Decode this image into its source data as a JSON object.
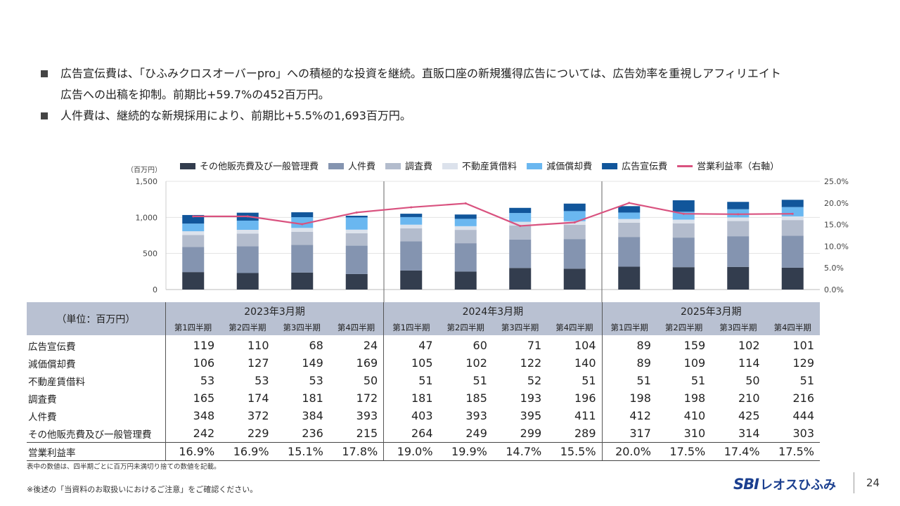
{
  "bullets": [
    {
      "line1": "広告宣伝費は、「ひふみクロスオーバーpro」への積極的な投資を継続。直販口座の新規獲得広告については、広告効率を重視しアフィリエイト",
      "line2": "広告への出稿を抑制。前期比+59.7%の452百万円。"
    },
    {
      "line1": "人件費は、継続的な新規採用により、前期比+5.5%の1,693百万円。",
      "line2": ""
    }
  ],
  "chart_data": {
    "type": "bar",
    "stacked": true,
    "unit_label": "（百万円）",
    "y_ticks": [
      "1,500",
      "1,000",
      "500",
      "0"
    ],
    "y2_ticks": [
      "25.0%",
      "20.0%",
      "15.0%",
      "10.0%",
      "5.0%",
      "0.0%"
    ],
    "ylim": [
      0,
      1500
    ],
    "y2lim": [
      0,
      25
    ],
    "legend_placement": "top",
    "categories": [
      "2023年3月期 第1四半期",
      "2023年3月期 第2四半期",
      "2023年3月期 第3四半期",
      "2023年3月期 第4四半期",
      "2024年3月期 第1四半期",
      "2024年3月期 第2四半期",
      "2024年3月期 第3四半期",
      "2024年3月期 第4四半期",
      "2025年3月期 第1四半期",
      "2025年3月期 第2四半期",
      "2025年3月期 第3四半期",
      "2025年3月期 第4四半期"
    ],
    "series": [
      {
        "name": "その他販売費及び一般管理費",
        "color": "#333d4e",
        "values": [
          242,
          229,
          236,
          215,
          264,
          249,
          299,
          289,
          317,
          310,
          314,
          303
        ]
      },
      {
        "name": "人件費",
        "color": "#8494b0",
        "values": [
          348,
          372,
          384,
          393,
          403,
          393,
          395,
          411,
          412,
          410,
          425,
          444
        ]
      },
      {
        "name": "調査費",
        "color": "#b3bccd",
        "values": [
          165,
          174,
          181,
          172,
          181,
          185,
          193,
          196,
          198,
          198,
          210,
          216
        ]
      },
      {
        "name": "不動産賃借料",
        "color": "#dce2ec",
        "values": [
          53,
          53,
          53,
          50,
          51,
          51,
          52,
          51,
          51,
          51,
          50,
          51
        ]
      },
      {
        "name": "減価償却費",
        "color": "#6ab7f0",
        "values": [
          106,
          127,
          149,
          169,
          105,
          102,
          122,
          140,
          89,
          109,
          114,
          129
        ]
      },
      {
        "name": "広告宣伝費",
        "color": "#11569b",
        "values": [
          119,
          110,
          68,
          24,
          47,
          60,
          71,
          104,
          89,
          159,
          102,
          101
        ]
      }
    ],
    "line_series": {
      "name": "営業利益率（右軸）",
      "color": "#d9527f",
      "values": [
        16.9,
        16.9,
        15.1,
        17.8,
        19.0,
        19.9,
        14.7,
        15.5,
        20.0,
        17.5,
        17.4,
        17.5
      ]
    }
  },
  "table": {
    "unit": "（単位：百万円）",
    "years": [
      "2023年3月期",
      "2024年3月期",
      "2025年3月期"
    ],
    "quarters": [
      "第1四半期",
      "第2四半期",
      "第3四半期",
      "第4四半期"
    ],
    "rows": [
      {
        "label": "広告宣伝費",
        "values": [
          "119",
          "110",
          "68",
          "24",
          "47",
          "60",
          "71",
          "104",
          "89",
          "159",
          "102",
          "101"
        ]
      },
      {
        "label": "減価償却費",
        "values": [
          "106",
          "127",
          "149",
          "169",
          "105",
          "102",
          "122",
          "140",
          "89",
          "109",
          "114",
          "129"
        ]
      },
      {
        "label": "不動産賃借料",
        "values": [
          "53",
          "53",
          "53",
          "50",
          "51",
          "51",
          "52",
          "51",
          "51",
          "51",
          "50",
          "51"
        ]
      },
      {
        "label": "調査費",
        "values": [
          "165",
          "174",
          "181",
          "172",
          "181",
          "185",
          "193",
          "196",
          "198",
          "198",
          "210",
          "216"
        ]
      },
      {
        "label": "人件費",
        "values": [
          "348",
          "372",
          "384",
          "393",
          "403",
          "393",
          "395",
          "411",
          "412",
          "410",
          "425",
          "444"
        ]
      },
      {
        "label": "その他販売費及び一般管理費",
        "values": [
          "242",
          "229",
          "236",
          "215",
          "264",
          "249",
          "299",
          "289",
          "317",
          "310",
          "314",
          "303"
        ]
      },
      {
        "label": "営業利益率",
        "values": [
          "16.9%",
          "16.9%",
          "15.1%",
          "17.8%",
          "19.0%",
          "19.9%",
          "14.7%",
          "15.5%",
          "20.0%",
          "17.5%",
          "17.4%",
          "17.5%"
        ]
      }
    ]
  },
  "note": "表中の数値は、四半期ごとに百万円未満切り捨ての数値を記載。",
  "footer": "※後述の「当資料のお取扱いにおけるご注意」をご確認ください。",
  "logo": {
    "sbi": "SBI",
    "rest": "レオスひふみ"
  },
  "page_number": "24"
}
